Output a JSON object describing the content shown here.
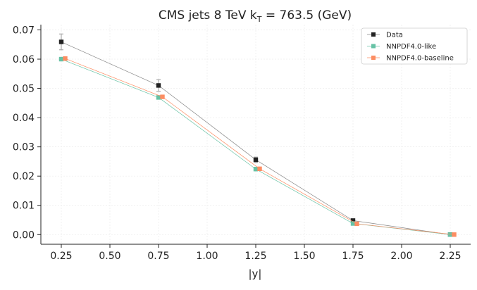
{
  "chart_data": {
    "type": "line",
    "title_main": "CMS jets 8 TeV k",
    "title_sub": "T",
    "title_tail": " = 763.5 (GeV)",
    "xlabel": "|y|",
    "ylabel": "",
    "xlim": [
      0.145,
      2.355
    ],
    "ylim": [
      -0.0033,
      0.0718
    ],
    "x_ticks": [
      0.25,
      0.5,
      0.75,
      1.0,
      1.25,
      1.5,
      1.75,
      2.0,
      2.25
    ],
    "x_tick_labels": [
      "0.25",
      "0.50",
      "0.75",
      "1.00",
      "1.25",
      "1.50",
      "1.75",
      "2.00",
      "2.25"
    ],
    "y_ticks": [
      0.0,
      0.01,
      0.02,
      0.03,
      0.04,
      0.05,
      0.06,
      0.07
    ],
    "y_tick_labels": [
      "0.00",
      "0.01",
      "0.02",
      "0.03",
      "0.04",
      "0.05",
      "0.06",
      "0.07"
    ],
    "grid": true,
    "legend_position": "top-right",
    "series": [
      {
        "name": "Data",
        "color": "#222222",
        "line_color": "#888888",
        "x_offset": 0.0,
        "x": [
          0.25,
          0.75,
          1.25,
          1.75,
          2.25
        ],
        "y": [
          0.0659,
          0.051,
          0.0256,
          0.0048,
          0.0
        ],
        "yerr": [
          0.0027,
          0.002,
          0.0009,
          0.0003,
          5e-05
        ]
      },
      {
        "name": "NNPDF4.0-like",
        "color": "#66c2a5",
        "line_color": "#66c2a5",
        "x_offset": 0.0,
        "x": [
          0.25,
          0.75,
          1.25,
          1.75,
          2.25
        ],
        "y": [
          0.06,
          0.0469,
          0.0224,
          0.0038,
          0.0
        ]
      },
      {
        "name": "NNPDF4.0-baseline",
        "color": "#fc8d62",
        "line_color": "#fc8d62",
        "x_offset": 0.02,
        "x": [
          0.25,
          0.75,
          1.25,
          1.75,
          2.25
        ],
        "y": [
          0.0602,
          0.0471,
          0.0225,
          0.0037,
          0.0
        ]
      }
    ]
  }
}
